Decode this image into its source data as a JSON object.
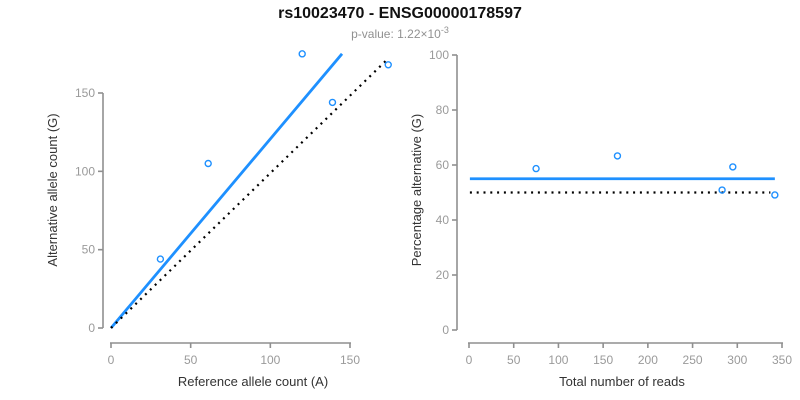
{
  "header": {
    "title": "rs10023470 - ENSG00000178597",
    "pvalue_text": "p-value: 1.22×10",
    "pvalue_exponent": "-3"
  },
  "colors": {
    "accent_blue": "#1E90FF",
    "dotted_black": "#000000",
    "axis_gray": "#8f8f8f",
    "tick_label_gray": "#9a9a9a",
    "axis_title_color": "#333333"
  },
  "chart_data": [
    {
      "type": "scatter",
      "title": "",
      "xlabel": "Reference allele count (A)",
      "ylabel": "Alternative allele count (G)",
      "xlim": [
        0,
        175
      ],
      "ylim": [
        0,
        180
      ],
      "xticks": [
        0,
        50,
        100,
        150
      ],
      "yticks": [
        0,
        50,
        100,
        150
      ],
      "grid": false,
      "legend": "none",
      "points": [
        [
          31,
          44
        ],
        [
          61,
          105
        ],
        [
          120,
          175
        ],
        [
          139,
          144
        ],
        [
          174,
          168
        ]
      ],
      "lines": [
        {
          "name": "fitted-regression",
          "style": "solid",
          "color": "#1E90FF",
          "x1": 0,
          "y1": 0,
          "x2": 145,
          "y2": 175
        },
        {
          "name": "identity",
          "style": "dotted",
          "color": "#000000",
          "x1": 0,
          "y1": 0,
          "x2": 174,
          "y2": 172
        }
      ]
    },
    {
      "type": "scatter",
      "title": "",
      "xlabel": "Total number of reads",
      "ylabel": "Percentage alternative (G)",
      "xlim": [
        0,
        350
      ],
      "ylim": [
        0,
        100
      ],
      "xticks": [
        0,
        50,
        100,
        150,
        200,
        250,
        300,
        350
      ],
      "yticks": [
        0,
        20,
        40,
        60,
        80,
        100
      ],
      "grid": false,
      "legend": "none",
      "points": [
        [
          75,
          58.7
        ],
        [
          166,
          63.3
        ],
        [
          283,
          50.9
        ],
        [
          295,
          59.3
        ],
        [
          342,
          49.1
        ]
      ],
      "lines": [
        {
          "name": "fitted-percentage",
          "style": "solid",
          "color": "#1E90FF",
          "x1": 1,
          "y1": 55,
          "x2": 342,
          "y2": 55
        },
        {
          "name": "null-50-percent",
          "style": "dotted",
          "color": "#000000",
          "x1": 1,
          "y1": 50,
          "x2": 337,
          "y2": 50
        }
      ]
    }
  ]
}
